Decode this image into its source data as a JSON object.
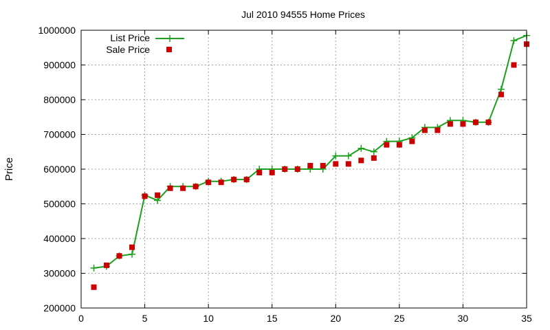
{
  "chart_data": {
    "type": "line",
    "title": "Jul 2010 94555 Home Prices",
    "xlabel": "",
    "ylabel": "Price",
    "xlim": [
      0,
      35
    ],
    "ylim": [
      200000,
      1000000
    ],
    "xticks": [
      0,
      5,
      10,
      15,
      20,
      25,
      30,
      35
    ],
    "yticks": [
      200000,
      300000,
      400000,
      500000,
      600000,
      700000,
      800000,
      900000,
      1000000
    ],
    "grid": true,
    "legend_position": "top-left",
    "x": [
      1,
      2,
      3,
      4,
      5,
      6,
      7,
      8,
      9,
      10,
      11,
      12,
      13,
      14,
      15,
      16,
      17,
      18,
      19,
      20,
      21,
      22,
      23,
      24,
      25,
      26,
      27,
      28,
      29,
      30,
      31,
      32,
      33,
      34,
      35
    ],
    "series": [
      {
        "name": "List Price",
        "style": "line+cross",
        "color": "#1aa01a",
        "values": [
          315000,
          320000,
          350000,
          355000,
          525000,
          510000,
          550000,
          550000,
          550000,
          565000,
          565000,
          570000,
          570000,
          600000,
          600000,
          600000,
          600000,
          600000,
          600000,
          638000,
          638000,
          660000,
          650000,
          680000,
          680000,
          690000,
          720000,
          720000,
          740000,
          740000,
          735000,
          735000,
          830000,
          970000,
          985000
        ]
      },
      {
        "name": "Sale Price",
        "style": "square",
        "color": "#cc0000",
        "values": [
          260000,
          323000,
          350000,
          375000,
          522000,
          525000,
          545000,
          545000,
          550000,
          562000,
          562000,
          570000,
          570000,
          590000,
          590000,
          600000,
          600000,
          610000,
          610000,
          615000,
          615000,
          625000,
          632000,
          670000,
          670000,
          680000,
          712000,
          712000,
          730000,
          730000,
          735000,
          735000,
          815000,
          900000,
          960000
        ]
      }
    ]
  }
}
